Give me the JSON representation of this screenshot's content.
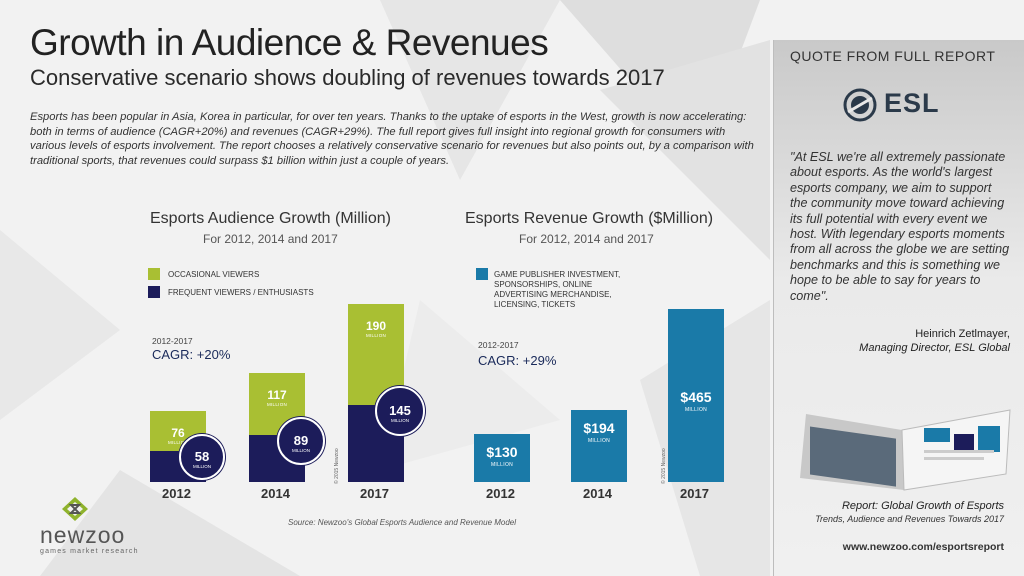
{
  "header": {
    "title": "Growth in Audience & Revenues",
    "subtitle": "Conservative scenario shows doubling of revenues towards 2017"
  },
  "intro": "Esports has been popular in Asia, Korea in particular, for over ten years. Thanks to the uptake of esports in the West, growth is now accelerating: both in terms of audience (CAGR+20%) and revenues (CAGR+29%). The full report gives full insight into regional growth for consumers with various levels of esports involvement. The report chooses a relatively conservative scenario for revenues but also points out, by a comparison with traditional sports, that revenues could surpass $1 billion within just a couple of years.",
  "colors": {
    "occasional": "#a9bf33",
    "frequent": "#1c1c5a",
    "revenue": "#1a7aa8"
  },
  "chart_data": [
    {
      "type": "bar",
      "title": "Esports Audience Growth (Million)",
      "subtitle": "For 2012, 2014 and 2017",
      "categories": [
        "2012",
        "2014",
        "2017"
      ],
      "series": [
        {
          "name": "OCCASIONAL VIEWERS",
          "values": [
            76,
            117,
            190
          ]
        },
        {
          "name": "FREQUENT VIEWERS / ENTHUSIASTS",
          "values": [
            58,
            89,
            145
          ]
        }
      ],
      "value_unit": "MILLION",
      "cagr_period": "2012-2017",
      "cagr": "CAGR: +20%",
      "watermark": "© 2015 Newzoo"
    },
    {
      "type": "bar",
      "title": "Esports Revenue Growth ($Million)",
      "subtitle": "For 2012, 2014 and 2017",
      "categories": [
        "2012",
        "2014",
        "2017"
      ],
      "series": [
        {
          "name": "GAME PUBLISHER INVESTMENT, SPONSORSHIPS, ONLINE ADVERTISING MERCHANDISE, LICENSING, TICKETS",
          "values": [
            130,
            194,
            465
          ]
        }
      ],
      "value_labels": [
        "$130",
        "$194",
        "$465"
      ],
      "value_unit": "MILLION",
      "cagr_period": "2012-2017",
      "cagr": "CAGR: +29%",
      "watermark": "© 2015 Newzoo"
    }
  ],
  "source": "Source: Newzoo's Global Esports Audience and Revenue Model",
  "logo": {
    "name": "newzoo",
    "tagline": "games market research"
  },
  "quote_panel": {
    "heading": "QUOTE FROM FULL REPORT",
    "brand": "ESL",
    "quote": "\"At ESL we're all extremely passionate about esports. As the world's largest esports company, we aim to support the community move toward achieving its full potential with every event we host. With legendary esports moments from all across the globe we are setting benchmarks and this is something we hope to be able to say for years to come\".",
    "person": "Heinrich Zetlmayer,",
    "role": "Managing Director, ESL Global",
    "report_title": "Report: Global Growth of Esports",
    "report_subtitle": "Trends, Audience and Revenues Towards 2017",
    "url": "www.newzoo.com/esportsreport"
  }
}
